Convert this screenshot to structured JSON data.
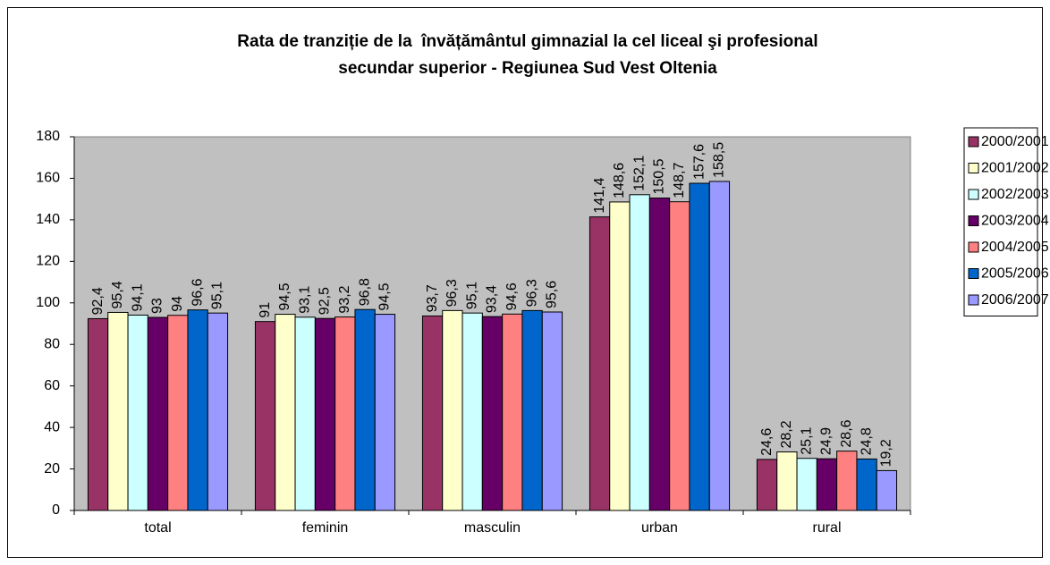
{
  "chart_data": {
    "type": "bar",
    "title": [
      "Rata de tranziție de la  învățământul gimnazial la cel liceal şi profesional",
      "secundar superior - Regiunea Sud Vest Oltenia"
    ],
    "categories": [
      "total",
      "feminin",
      "masculin",
      "urban",
      "rural"
    ],
    "series": [
      {
        "name": "2000/2001",
        "color": "#993366",
        "values": [
          92.4,
          91,
          93.7,
          141.4,
          24.6
        ],
        "value_labels": [
          "92,4",
          "91",
          "93,7",
          "141,4",
          "24,6"
        ]
      },
      {
        "name": "2001/2002",
        "color": "#ffffcc",
        "values": [
          95.4,
          94.5,
          96.3,
          148.6,
          28.2
        ],
        "value_labels": [
          "95,4",
          "94,5",
          "96,3",
          "148,6",
          "28,2"
        ]
      },
      {
        "name": "2002/2003",
        "color": "#ccffff",
        "values": [
          94.1,
          93.1,
          95.1,
          152.1,
          25.1
        ],
        "value_labels": [
          "94,1",
          "93,1",
          "95,1",
          "152,1",
          "25,1"
        ]
      },
      {
        "name": "2003/2004",
        "color": "#660066",
        "values": [
          93,
          92.5,
          93.4,
          150.5,
          24.9
        ],
        "value_labels": [
          "93",
          "92,5",
          "93,4",
          "150,5",
          "24,9"
        ]
      },
      {
        "name": "2004/2005",
        "color": "#ff8080",
        "values": [
          94,
          93.2,
          94.6,
          148.7,
          28.6
        ],
        "value_labels": [
          "94",
          "93,2",
          "94,6",
          "148,7",
          "28,6"
        ]
      },
      {
        "name": "2005/2006",
        "color": "#0066cc",
        "values": [
          96.6,
          96.8,
          96.3,
          157.6,
          24.8
        ],
        "value_labels": [
          "96,6",
          "96,8",
          "96,3",
          "157,6",
          "24,8"
        ]
      },
      {
        "name": "2006/2007",
        "color": "#9999ff",
        "values": [
          95.1,
          94.5,
          95.6,
          158.5,
          19.2
        ],
        "value_labels": [
          "95,1",
          "94,5",
          "95,6",
          "158,5",
          "19,2"
        ]
      }
    ],
    "ylim": [
      0,
      180
    ],
    "yticks": [
      0,
      20,
      40,
      60,
      80,
      100,
      120,
      140,
      160,
      180
    ],
    "grid": false,
    "plot_background": "#c0c0c0",
    "legend": "right"
  }
}
